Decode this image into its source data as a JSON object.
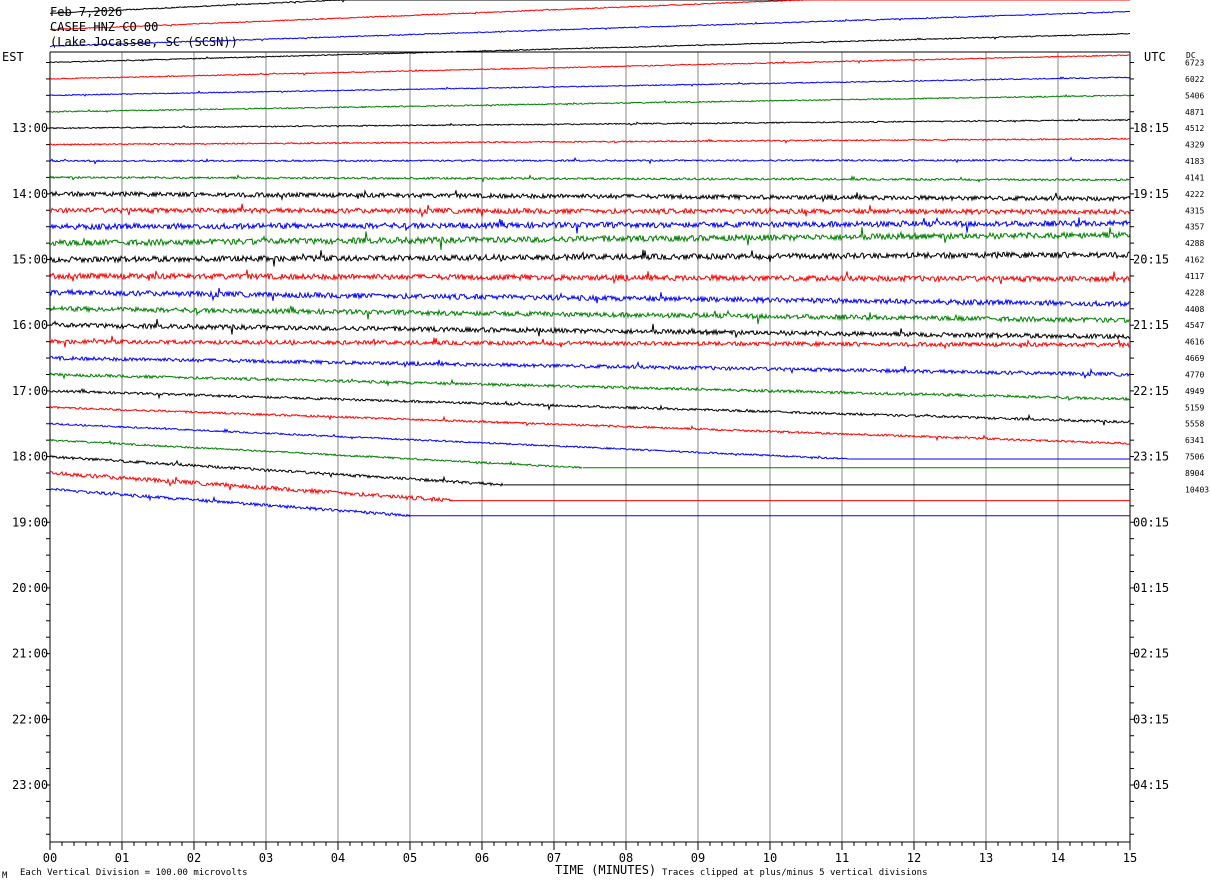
{
  "header": {
    "date": "Feb 7,2026",
    "station": "CASEE HNZ CO 00",
    "location": "(Lake Jocassee, SC (SCSN))"
  },
  "left_timezone": "EST",
  "right_timezone": "UTC",
  "dc_header": "DC",
  "footer": {
    "scale": "Each Vertical Division =  100.00 microvolts",
    "axis_title": "TIME (MINUTES)",
    "clip_note": "Traces clipped at plus/minus 5 vertical divisions",
    "corner_mark": "M"
  },
  "colors": {
    "trace_cycle": [
      "#000000",
      "#ff0000",
      "#0000ff",
      "#008000"
    ],
    "grid": "#888888"
  },
  "chart_data": {
    "type": "line",
    "x_axis": {
      "label": "TIME (MINUTES)",
      "min": 0,
      "max": 15,
      "tick_labels": [
        "00",
        "01",
        "02",
        "03",
        "04",
        "05",
        "06",
        "07",
        "08",
        "09",
        "10",
        "11",
        "12",
        "13",
        "14",
        "15"
      ]
    },
    "rows_per_hour": 4,
    "minutes_per_row": 15,
    "left_hour_labels": [
      {
        "row": 4,
        "label": "13:00"
      },
      {
        "row": 8,
        "label": "14:00"
      },
      {
        "row": 12,
        "label": "15:00"
      },
      {
        "row": 16,
        "label": "16:00"
      },
      {
        "row": 20,
        "label": "17:00"
      },
      {
        "row": 24,
        "label": "18:00"
      },
      {
        "row": 28,
        "label": "19:00"
      },
      {
        "row": 32,
        "label": "20:00"
      },
      {
        "row": 36,
        "label": "21:00"
      },
      {
        "row": 40,
        "label": "22:00"
      },
      {
        "row": 44,
        "label": "23:00"
      }
    ],
    "right_hour_labels": [
      {
        "row": 4,
        "label": "18:15"
      },
      {
        "row": 8,
        "label": "19:15"
      },
      {
        "row": 12,
        "label": "20:15"
      },
      {
        "row": 16,
        "label": "21:15"
      },
      {
        "row": 20,
        "label": "22:15"
      },
      {
        "row": 24,
        "label": "23:15"
      },
      {
        "row": 28,
        "label": "00:15"
      },
      {
        "row": 32,
        "label": "01:15"
      },
      {
        "row": 36,
        "label": "02:15"
      },
      {
        "row": 40,
        "label": "03:15"
      },
      {
        "row": 44,
        "label": "04:15"
      }
    ],
    "dc_offsets": [
      "6723",
      "6022",
      "5406",
      "4871",
      "4512",
      "4329",
      "4183",
      "4141",
      "4222",
      "4315",
      "4357",
      "4288",
      "4162",
      "4117",
      "4228",
      "4408",
      "4547",
      "4616",
      "4669",
      "4770",
      "4949",
      "5159",
      "5558",
      "6341",
      "7506",
      "8904",
      "10403"
    ],
    "traces": [
      {
        "row": -3,
        "color": "#000000",
        "slope": 3.0,
        "noise": 0.5,
        "end": 15
      },
      {
        "row": -2,
        "color": "#ff0000",
        "slope": 2.6,
        "noise": 0.5,
        "end": 15
      },
      {
        "row": -1,
        "color": "#0000ff",
        "slope": 2.1,
        "noise": 0.5,
        "end": 15
      },
      {
        "row": 0,
        "color": "#000000",
        "slope": 1.75,
        "noise": 0.5,
        "end": 15
      },
      {
        "row": 1,
        "color": "#ff0000",
        "slope": 1.45,
        "noise": 0.5,
        "end": 15
      },
      {
        "row": 2,
        "color": "#0000ff",
        "slope": 1.1,
        "noise": 0.5,
        "end": 15
      },
      {
        "row": 3,
        "color": "#008000",
        "slope": 1.0,
        "noise": 0.6,
        "end": 15
      },
      {
        "row": 4,
        "color": "#000000",
        "slope": 0.5,
        "noise": 0.6,
        "end": 15
      },
      {
        "row": 5,
        "color": "#ff0000",
        "slope": 0.35,
        "noise": 0.7,
        "end": 15
      },
      {
        "row": 6,
        "color": "#0000ff",
        "slope": 0.05,
        "noise": 0.8,
        "end": 15
      },
      {
        "row": 7,
        "color": "#008000",
        "slope": -0.15,
        "noise": 1.0,
        "end": 15
      },
      {
        "row": 8,
        "color": "#000000",
        "slope": -0.3,
        "noise": 2.2,
        "end": 15
      },
      {
        "row": 9,
        "color": "#ff0000",
        "slope": -0.1,
        "noise": 2.5,
        "end": 15
      },
      {
        "row": 10,
        "color": "#0000ff",
        "slope": 0.2,
        "noise": 2.8,
        "end": 15
      },
      {
        "row": 11,
        "color": "#008000",
        "slope": 0.5,
        "noise": 3.0,
        "end": 15
      },
      {
        "row": 12,
        "color": "#000000",
        "slope": 0.3,
        "noise": 2.8,
        "end": 15
      },
      {
        "row": 13,
        "color": "#ff0000",
        "slope": -0.2,
        "noise": 2.8,
        "end": 15
      },
      {
        "row": 14,
        "color": "#0000ff",
        "slope": -0.7,
        "noise": 2.6,
        "end": 15
      },
      {
        "row": 15,
        "color": "#008000",
        "slope": -0.7,
        "noise": 2.4,
        "end": 15
      },
      {
        "row": 16,
        "color": "#000000",
        "slope": -0.7,
        "noise": 2.3,
        "end": 15
      },
      {
        "row": 17,
        "color": "#ff0000",
        "slope": -0.2,
        "noise": 2.0,
        "end": 15
      },
      {
        "row": 18,
        "color": "#0000ff",
        "slope": -1.0,
        "noise": 1.8,
        "end": 15
      },
      {
        "row": 19,
        "color": "#008000",
        "slope": -1.5,
        "noise": 1.4,
        "end": 15
      },
      {
        "row": 20,
        "color": "#000000",
        "slope": -1.9,
        "noise": 1.2,
        "end": 15
      },
      {
        "row": 21,
        "color": "#ff0000",
        "slope": -2.2,
        "noise": 1.0,
        "end": 15
      },
      {
        "row": 22,
        "color": "#0000ff",
        "slope": -2.9,
        "noise": 0.8,
        "end": 11.1
      },
      {
        "row": 23,
        "color": "#008000",
        "slope": -3.4,
        "noise": 0.9,
        "end": 7.4
      },
      {
        "row": 24,
        "color": "#000000",
        "slope": -4.1,
        "noise": 1.4,
        "end": 6.3
      },
      {
        "row": 25,
        "color": "#ff0000",
        "slope": -4.5,
        "noise": 2.0,
        "end": 5.6
      },
      {
        "row": 26,
        "color": "#0000ff",
        "slope": -4.8,
        "noise": 1.5,
        "end": 5.0
      }
    ]
  }
}
